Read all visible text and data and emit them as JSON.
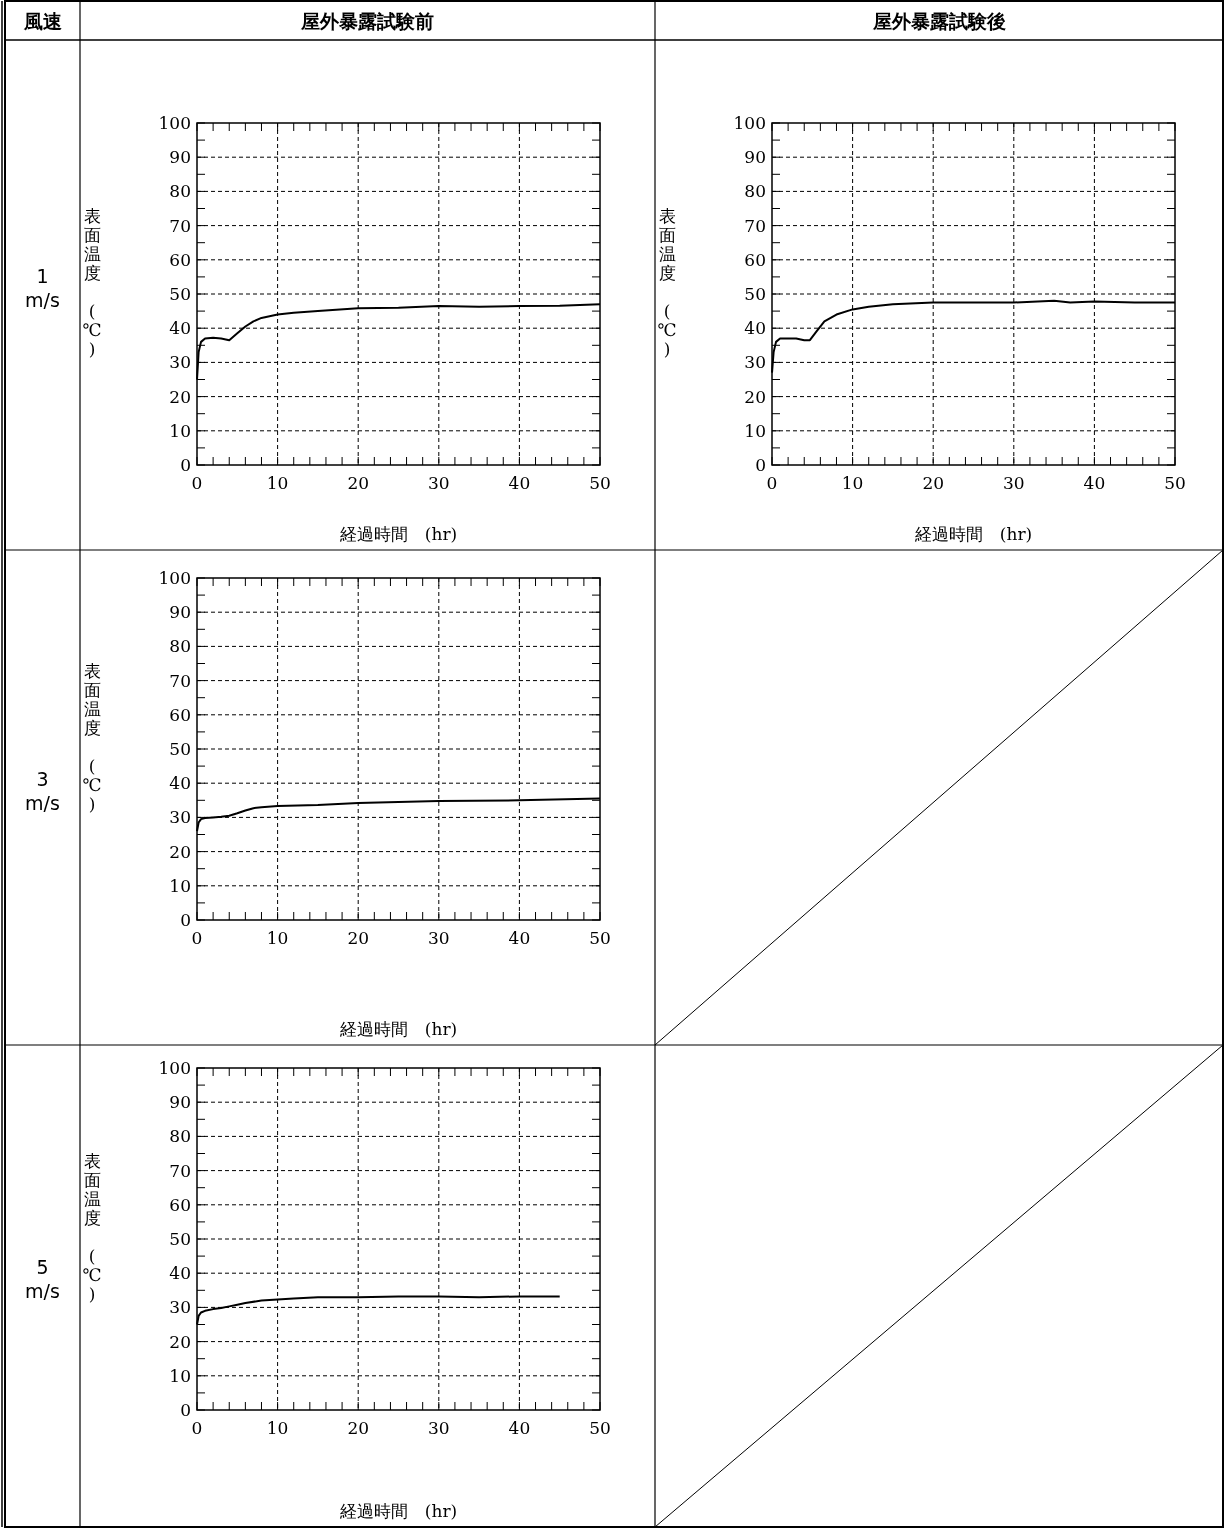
{
  "chart_data": [
    {
      "type": "line",
      "title": "屋外暴露試験前",
      "subtitle": "1 m/s",
      "annotations": [
        "風速"
      ],
      "xlabel": "経過時間　(hr)",
      "ylabel": "表面温度　(℃)",
      "grid": true,
      "color": "#000000",
      "xlim": [
        0,
        50
      ],
      "ylim": [
        0,
        100
      ],
      "xticks": [
        0,
        {
          "value": 2,
          "label": null
        },
        {
          "value": 4,
          "label": null
        },
        {
          "value": 6,
          "label": null
        },
        {
          "value": 8,
          "label": null
        },
        10,
        {
          "value": 12,
          "label": null
        },
        {
          "value": 14,
          "label": null
        },
        {
          "value": 16,
          "label": null
        },
        {
          "value": 18,
          "label": null
        },
        20,
        {
          "value": 22,
          "label": null
        },
        {
          "value": 24,
          "label": null
        },
        {
          "value": 26,
          "label": null
        },
        {
          "value": 28,
          "label": null
        },
        30,
        {
          "value": 32,
          "label": null
        },
        {
          "value": 34,
          "label": null
        },
        {
          "value": 36,
          "label": null
        },
        {
          "value": 38,
          "label": null
        },
        40,
        {
          "value": 42,
          "label": null
        },
        {
          "value": 44,
          "label": null
        },
        {
          "value": 46,
          "label": null
        },
        {
          "value": 48,
          "label": null
        },
        50
      ],
      "yticks": [
        0,
        {
          "value": 5,
          "label": null
        },
        10,
        {
          "value": 15,
          "label": null
        },
        20,
        {
          "value": 25,
          "label": null
        },
        30,
        {
          "value": 35,
          "label": null
        },
        40,
        {
          "value": 45,
          "label": null
        },
        50,
        {
          "value": 55,
          "label": null
        },
        60,
        {
          "value": 65,
          "label": null
        },
        70,
        {
          "value": 75,
          "label": null
        },
        80,
        {
          "value": 85,
          "label": null
        },
        90,
        {
          "value": 95,
          "label": null
        },
        100
      ],
      "x": [
        0,
        0.2,
        0.5,
        1,
        2,
        3,
        4,
        5,
        6,
        7,
        8,
        10,
        12,
        15,
        20,
        25,
        30,
        35,
        40,
        45,
        50
      ],
      "values": [
        25,
        33,
        36,
        37,
        37.2,
        37,
        36.5,
        38.5,
        40.5,
        42,
        43,
        44,
        44.5,
        45,
        45.8,
        46,
        46.5,
        46.3,
        46.5,
        46.6,
        47
      ]
    },
    {
      "type": "line",
      "title": "屋外暴露試験後",
      "xlabel": "経過時間　(hr)",
      "ylabel": "表面温度　(℃)",
      "grid": true,
      "color": "#000000",
      "xlim": [
        0,
        50
      ],
      "ylim": [
        0,
        100
      ],
      "xticks": [
        0,
        {
          "value": 2,
          "label": null
        },
        {
          "value": 4,
          "label": null
        },
        {
          "value": 6,
          "label": null
        },
        {
          "value": 8,
          "label": null
        },
        10,
        {
          "value": 12,
          "label": null
        },
        {
          "value": 14,
          "label": null
        },
        {
          "value": 16,
          "label": null
        },
        {
          "value": 18,
          "label": null
        },
        20,
        {
          "value": 22,
          "label": null
        },
        {
          "value": 24,
          "label": null
        },
        {
          "value": 26,
          "label": null
        },
        {
          "value": 28,
          "label": null
        },
        30,
        {
          "value": 32,
          "label": null
        },
        {
          "value": 34,
          "label": null
        },
        {
          "value": 36,
          "label": null
        },
        {
          "value": 38,
          "label": null
        },
        40,
        {
          "value": 42,
          "label": null
        },
        {
          "value": 44,
          "label": null
        },
        {
          "value": 46,
          "label": null
        },
        {
          "value": 48,
          "label": null
        },
        50
      ],
      "yticks": [
        0,
        {
          "value": 5,
          "label": null
        },
        10,
        {
          "value": 15,
          "label": null
        },
        20,
        {
          "value": 25,
          "label": null
        },
        30,
        {
          "value": 35,
          "label": null
        },
        40,
        {
          "value": 45,
          "label": null
        },
        50,
        {
          "value": 55,
          "label": null
        },
        60,
        {
          "value": 65,
          "label": null
        },
        70,
        {
          "value": 75,
          "label": null
        },
        80,
        {
          "value": 85,
          "label": null
        },
        90,
        {
          "value": 95,
          "label": null
        },
        100
      ],
      "x": [
        0,
        0.2,
        0.5,
        1,
        2,
        3,
        4,
        4.7,
        5.5,
        6.5,
        8,
        10,
        12,
        15,
        20,
        25,
        30,
        35,
        37,
        40,
        45,
        50
      ],
      "values": [
        27,
        33,
        36,
        37,
        37,
        37,
        36.5,
        36.5,
        39,
        42,
        44,
        45.5,
        46.3,
        47,
        47.5,
        47.5,
        47.5,
        48,
        47.5,
        47.8,
        47.5,
        47.5
      ]
    },
    {
      "type": "line",
      "subtitle": "3 m/s",
      "xlabel": "経過時間　(hr)",
      "ylabel": "表面温度　(℃)",
      "grid": true,
      "color": "#000000",
      "xlim": [
        0,
        50
      ],
      "ylim": [
        0,
        100
      ],
      "xticks": [
        0,
        {
          "value": 2,
          "label": null
        },
        {
          "value": 4,
          "label": null
        },
        {
          "value": 6,
          "label": null
        },
        {
          "value": 8,
          "label": null
        },
        10,
        {
          "value": 12,
          "label": null
        },
        {
          "value": 14,
          "label": null
        },
        {
          "value": 16,
          "label": null
        },
        {
          "value": 18,
          "label": null
        },
        20,
        {
          "value": 22,
          "label": null
        },
        {
          "value": 24,
          "label": null
        },
        {
          "value": 26,
          "label": null
        },
        {
          "value": 28,
          "label": null
        },
        30,
        {
          "value": 32,
          "label": null
        },
        {
          "value": 34,
          "label": null
        },
        {
          "value": 36,
          "label": null
        },
        {
          "value": 38,
          "label": null
        },
        40,
        {
          "value": 42,
          "label": null
        },
        {
          "value": 44,
          "label": null
        },
        {
          "value": 46,
          "label": null
        },
        {
          "value": 48,
          "label": null
        },
        50
      ],
      "yticks": [
        0,
        {
          "value": 5,
          "label": null
        },
        10,
        {
          "value": 15,
          "label": null
        },
        20,
        {
          "value": 25,
          "label": null
        },
        30,
        {
          "value": 35,
          "label": null
        },
        40,
        {
          "value": 45,
          "label": null
        },
        50,
        {
          "value": 55,
          "label": null
        },
        60,
        {
          "value": 65,
          "label": null
        },
        70,
        {
          "value": 75,
          "label": null
        },
        80,
        {
          "value": 85,
          "label": null
        },
        90,
        {
          "value": 95,
          "label": null
        },
        100
      ],
      "x": [
        0,
        0.2,
        0.5,
        1,
        2,
        3,
        4,
        5,
        6,
        7,
        8,
        10,
        15,
        20,
        25,
        30,
        40,
        50
      ],
      "values": [
        26,
        28.5,
        29.5,
        29.8,
        30,
        30.2,
        30.5,
        31.2,
        32,
        32.7,
        33,
        33.3,
        33.6,
        34.2,
        34.5,
        34.8,
        35,
        35.5
      ]
    },
    {
      "type": "line",
      "subtitle": "5 m/s",
      "xlabel": "経過時間　(hr)",
      "ylabel": "表面温度　(℃)",
      "grid": true,
      "color": "#000000",
      "xlim": [
        0,
        50
      ],
      "ylim": [
        0,
        100
      ],
      "xticks": [
        0,
        {
          "value": 2,
          "label": null
        },
        {
          "value": 4,
          "label": null
        },
        {
          "value": 6,
          "label": null
        },
        {
          "value": 8,
          "label": null
        },
        10,
        {
          "value": 12,
          "label": null
        },
        {
          "value": 14,
          "label": null
        },
        {
          "value": 16,
          "label": null
        },
        {
          "value": 18,
          "label": null
        },
        20,
        {
          "value": 22,
          "label": null
        },
        {
          "value": 24,
          "label": null
        },
        {
          "value": 26,
          "label": null
        },
        {
          "value": 28,
          "label": null
        },
        30,
        {
          "value": 32,
          "label": null
        },
        {
          "value": 34,
          "label": null
        },
        {
          "value": 36,
          "label": null
        },
        {
          "value": 38,
          "label": null
        },
        40,
        {
          "value": 42,
          "label": null
        },
        {
          "value": 44,
          "label": null
        },
        {
          "value": 46,
          "label": null
        },
        {
          "value": 48,
          "label": null
        },
        50
      ],
      "yticks": [
        0,
        {
          "value": 5,
          "label": null
        },
        10,
        {
          "value": 15,
          "label": null
        },
        20,
        {
          "value": 25,
          "label": null
        },
        30,
        {
          "value": 35,
          "label": null
        },
        40,
        {
          "value": 45,
          "label": null
        },
        50,
        {
          "value": 55,
          "label": null
        },
        60,
        {
          "value": 65,
          "label": null
        },
        70,
        {
          "value": 75,
          "label": null
        },
        80,
        {
          "value": 85,
          "label": null
        },
        90,
        {
          "value": 95,
          "label": null
        },
        100
      ],
      "x": [
        0,
        0.2,
        0.5,
        1,
        2,
        3,
        4,
        5,
        6,
        8,
        10,
        12,
        15,
        20,
        25,
        30,
        35,
        40,
        45
      ],
      "values": [
        25,
        27.5,
        28.5,
        29,
        29.5,
        29.8,
        30.3,
        30.8,
        31.3,
        32,
        32.3,
        32.6,
        33,
        33,
        33.2,
        33.2,
        33,
        33.2,
        33.2
      ]
    }
  ]
}
